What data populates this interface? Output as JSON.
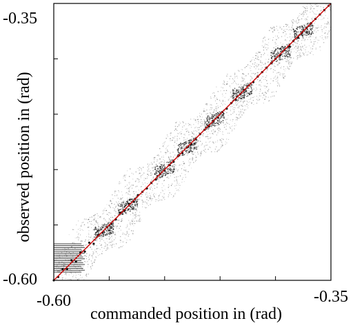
{
  "chart_data": {
    "type": "scatter",
    "title": "",
    "xlabel": "commanded position in (rad)",
    "ylabel": "observed position in (rad)",
    "xlim": [
      -0.6,
      -0.35
    ],
    "ylim": [
      -0.6,
      -0.35
    ],
    "x_tick_labels": [
      "-0.60",
      "-0.35"
    ],
    "y_tick_labels": [
      "-0.35",
      "-0.60"
    ],
    "grid": false,
    "legend": "none",
    "series": [
      {
        "type": "scatter",
        "color": "#000000",
        "points": [
          [
            -0.6,
            -0.6
          ],
          [
            -0.596,
            -0.597
          ],
          [
            -0.592,
            -0.59
          ],
          [
            -0.588,
            -0.59
          ],
          [
            -0.584,
            -0.582
          ],
          [
            -0.58,
            -0.583
          ],
          [
            -0.576,
            -0.575
          ],
          [
            -0.572,
            -0.574
          ],
          [
            -0.568,
            -0.566
          ],
          [
            -0.564,
            -0.567
          ],
          [
            -0.56,
            -0.559
          ],
          [
            -0.556,
            -0.557
          ],
          [
            -0.552,
            -0.552
          ],
          [
            -0.548,
            -0.549
          ],
          [
            -0.544,
            -0.545
          ],
          [
            -0.54,
            -0.539
          ],
          [
            -0.536,
            -0.537
          ],
          [
            -0.532,
            -0.531
          ],
          [
            -0.528,
            -0.529
          ],
          [
            -0.524,
            -0.523
          ],
          [
            -0.52,
            -0.52
          ],
          [
            -0.516,
            -0.517
          ],
          [
            -0.512,
            -0.512
          ],
          [
            -0.508,
            -0.509
          ],
          [
            -0.504,
            -0.504
          ],
          [
            -0.5,
            -0.501
          ],
          [
            -0.496,
            -0.496
          ],
          [
            -0.492,
            -0.493
          ],
          [
            -0.488,
            -0.488
          ],
          [
            -0.484,
            -0.485
          ],
          [
            -0.48,
            -0.48
          ],
          [
            -0.476,
            -0.477
          ],
          [
            -0.472,
            -0.472
          ],
          [
            -0.468,
            -0.468
          ],
          [
            -0.464,
            -0.464
          ],
          [
            -0.46,
            -0.461
          ],
          [
            -0.456,
            -0.456
          ],
          [
            -0.452,
            -0.453
          ],
          [
            -0.448,
            -0.448
          ],
          [
            -0.444,
            -0.445
          ],
          [
            -0.44,
            -0.44
          ],
          [
            -0.436,
            -0.437
          ],
          [
            -0.432,
            -0.432
          ],
          [
            -0.428,
            -0.428
          ],
          [
            -0.424,
            -0.424
          ],
          [
            -0.42,
            -0.421
          ],
          [
            -0.416,
            -0.416
          ],
          [
            -0.412,
            -0.412
          ],
          [
            -0.408,
            -0.408
          ],
          [
            -0.404,
            -0.404
          ],
          [
            -0.4,
            -0.4
          ],
          [
            -0.396,
            -0.397
          ],
          [
            -0.392,
            -0.392
          ],
          [
            -0.388,
            -0.389
          ],
          [
            -0.384,
            -0.384
          ],
          [
            -0.38,
            -0.381
          ],
          [
            -0.376,
            -0.376
          ],
          [
            -0.372,
            -0.372
          ],
          [
            -0.368,
            -0.368
          ],
          [
            -0.364,
            -0.364
          ],
          [
            -0.36,
            -0.36
          ],
          [
            -0.356,
            -0.356
          ],
          [
            -0.352,
            -0.352
          ]
        ]
      },
      {
        "type": "line",
        "color": "#cc0000",
        "x": [
          -0.6,
          -0.35
        ],
        "y": [
          -0.6,
          -0.35
        ]
      }
    ]
  }
}
